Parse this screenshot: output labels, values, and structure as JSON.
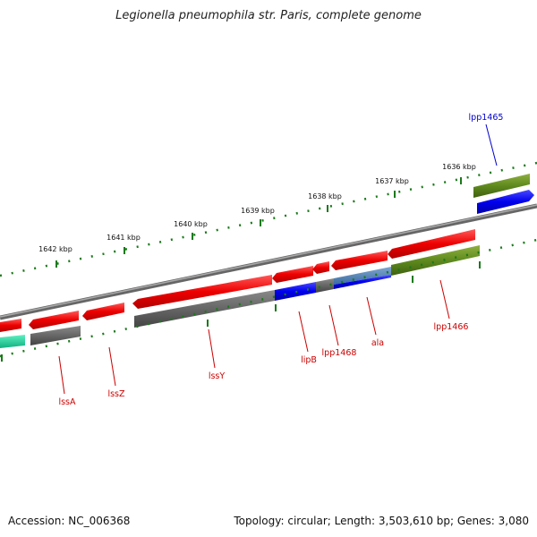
{
  "title": "Legionella pneumophila str. Paris, complete genome",
  "footer": {
    "accession": "Accession: NC_006368",
    "topology": "Topology: circular; Length: 3,503,610 bp; Genes: 3,080"
  },
  "ticks": [
    {
      "label": "1636 kbp"
    },
    {
      "label": "1637 kbp"
    },
    {
      "label": "1638 kbp"
    },
    {
      "label": "1639 kbp"
    },
    {
      "label": "1640 kbp"
    },
    {
      "label": "1641 kbp"
    },
    {
      "label": "1642 kbp"
    }
  ],
  "genes": [
    {
      "name": "lpp1465",
      "color": "#0000cc"
    },
    {
      "name": "lssA",
      "color": "#cc0000"
    },
    {
      "name": "lssZ",
      "color": "#cc0000"
    },
    {
      "name": "lssY",
      "color": "#cc0000"
    },
    {
      "name": "lipB",
      "color": "#cc0000"
    },
    {
      "name": "lpp1468",
      "color": "#cc0000"
    },
    {
      "name": "ala",
      "color": "#cc0000"
    },
    {
      "name": "lpp1466",
      "color": "#cc0000"
    }
  ],
  "colors": {
    "forward_cds": "#ee0000",
    "reverse_cds": "#0000ee",
    "rrna": "#666666",
    "trna": "#5f8a1e",
    "misc": "#1fe0a0",
    "backbone": "#8a8a8a",
    "tick": "#1a7a1a"
  }
}
